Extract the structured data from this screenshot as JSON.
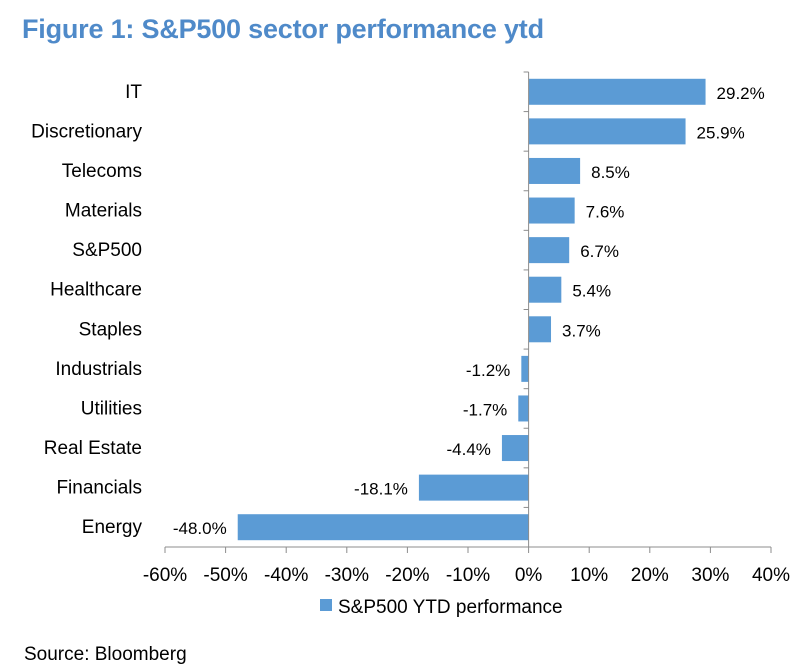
{
  "title": "Figure 1: S&P500 sector performance ytd",
  "source": "Source: Bloomberg",
  "colors": {
    "title": "#4f8ac9",
    "bar": "#5b9bd5"
  },
  "chart_data": {
    "type": "bar",
    "orientation": "horizontal",
    "categories": [
      "IT",
      "Discretionary",
      "Telecoms",
      "Materials",
      "S&P500",
      "Healthcare",
      "Staples",
      "Industrials",
      "Utilities",
      "Real Estate",
      "Financials",
      "Energy"
    ],
    "series": [
      {
        "name": "S&P500 YTD performance",
        "values": [
          29.2,
          25.9,
          8.5,
          7.6,
          6.7,
          5.4,
          3.7,
          -1.2,
          -1.7,
          -4.4,
          -18.1,
          -48.0
        ],
        "labels": [
          "29.2%",
          "25.9%",
          "8.5%",
          "7.6%",
          "6.7%",
          "5.4%",
          "3.7%",
          "-1.2%",
          "-1.7%",
          "-4.4%",
          "-18.1%",
          "-48.0%"
        ]
      }
    ],
    "xlim": [
      -60,
      40
    ],
    "xticks": [
      -60,
      -50,
      -40,
      -30,
      -20,
      -10,
      0,
      10,
      20,
      30,
      40
    ],
    "xtick_labels": [
      "-60%",
      "-50%",
      "-40%",
      "-30%",
      "-20%",
      "-10%",
      "0%",
      "10%",
      "20%",
      "30%",
      "40%"
    ],
    "grid": false,
    "legend_position": "bottom"
  }
}
